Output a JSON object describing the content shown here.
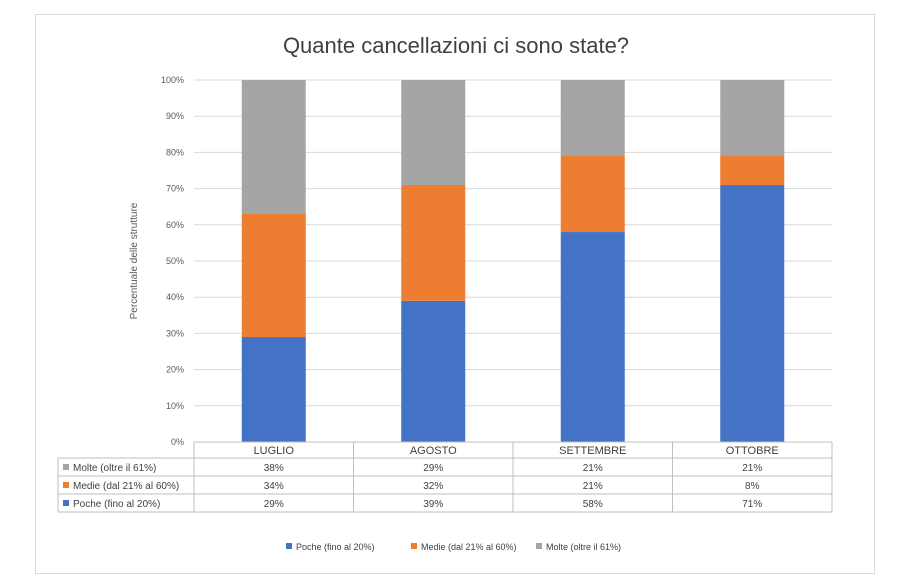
{
  "chart_data": {
    "type": "bar",
    "stacked": true,
    "title": "Quante cancellazioni ci sono state?",
    "ylabel": "Percentuale delle strutture",
    "xlabel": "",
    "ylim": [
      0,
      100
    ],
    "y_ticks": [
      "0%",
      "10%",
      "20%",
      "30%",
      "40%",
      "50%",
      "60%",
      "70%",
      "80%",
      "90%",
      "100%"
    ],
    "grid": true,
    "legend_position": "bottom",
    "categories": [
      "LUGLIO",
      "AGOSTO",
      "SETTEMBRE",
      "OTTOBRE"
    ],
    "series": [
      {
        "name": "Poche (fino al 20%)",
        "color": "#4472c4",
        "values": [
          29,
          39,
          58,
          71
        ],
        "labels": [
          "29%",
          "39%",
          "58%",
          "71%"
        ]
      },
      {
        "name": "Medie (dal 21% al 60%)",
        "color": "#ed7d31",
        "values": [
          34,
          32,
          21,
          8
        ],
        "labels": [
          "34%",
          "32%",
          "21%",
          "8%"
        ]
      },
      {
        "name": "Molte (oltre il 61%)",
        "color": "#a5a5a5",
        "values": [
          38,
          29,
          21,
          21
        ],
        "labels": [
          "38%",
          "29%",
          "21%",
          "21%"
        ]
      }
    ],
    "data_table": {
      "row_order": [
        "Molte (oltre il 61%)",
        "Medie (dal 21% al 60%)",
        "Poche (fino al 20%)"
      ]
    }
  }
}
